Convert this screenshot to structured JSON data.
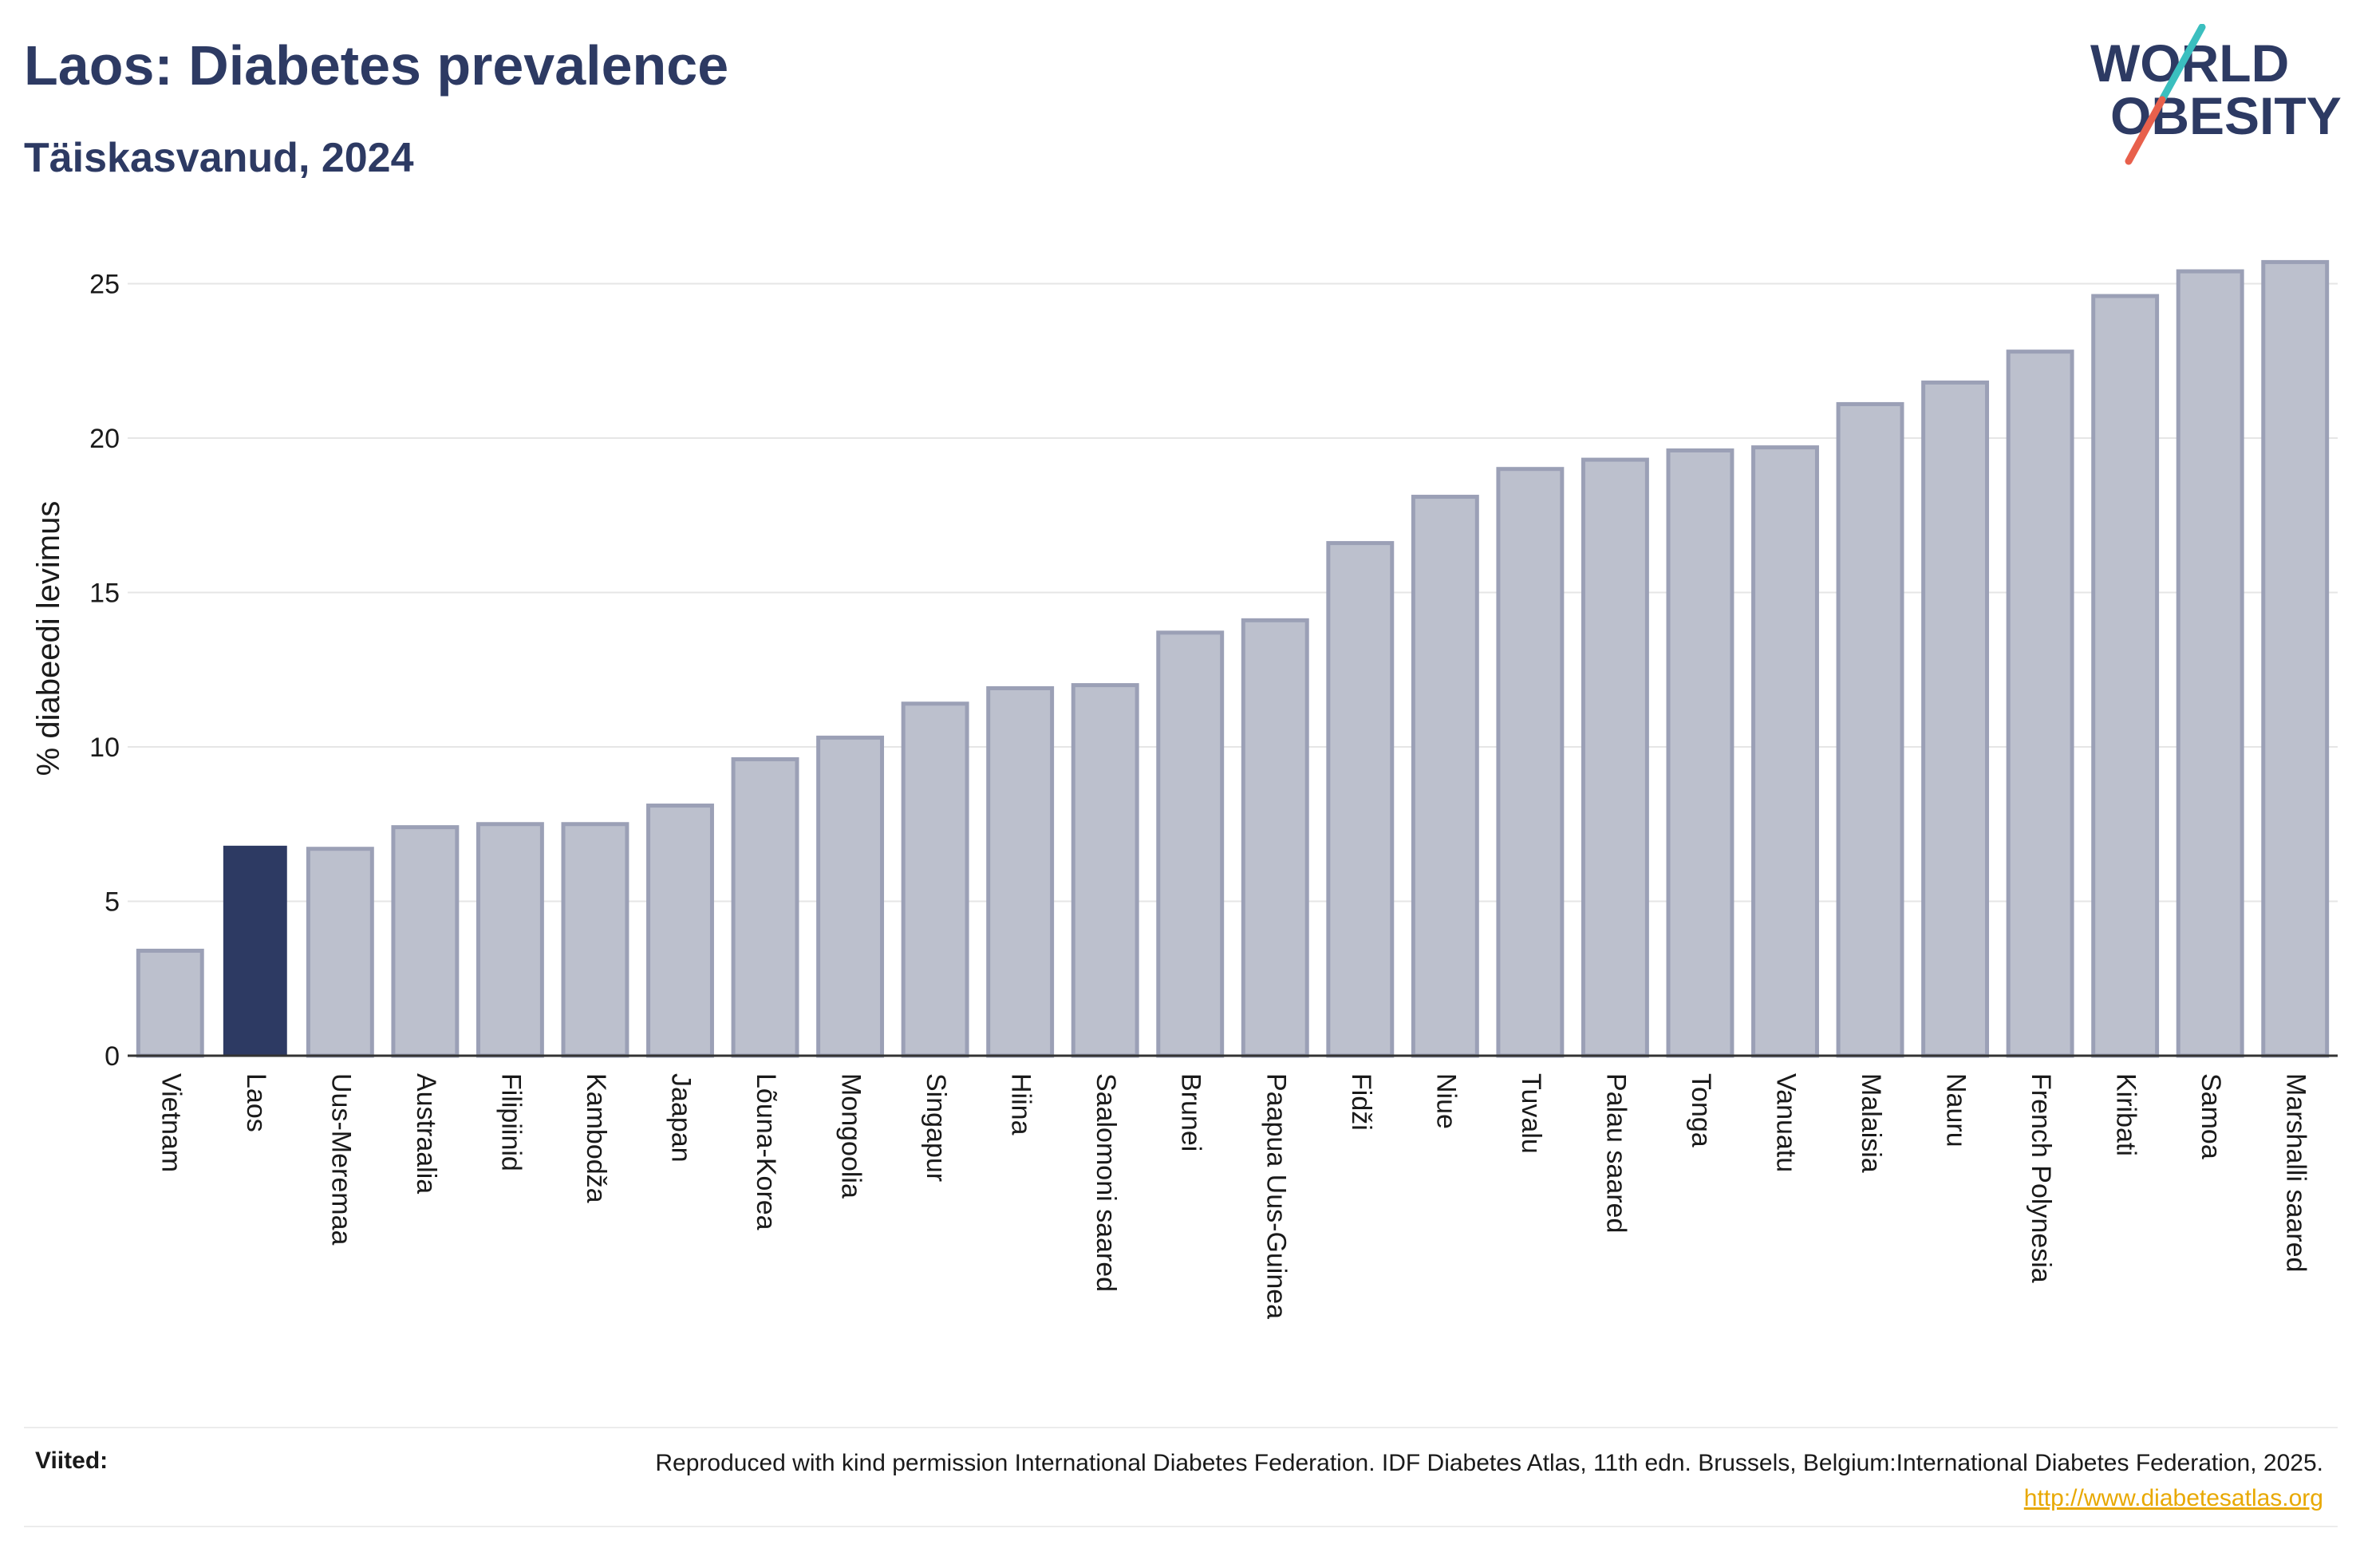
{
  "header": {
    "title": "Laos: Diabetes prevalence",
    "subtitle": "Täiskasvanud, 2024"
  },
  "logo": {
    "line1": "WORLD",
    "line2": "OBESITY",
    "colors": {
      "text": "#2d3a63",
      "slash_top": "#3bbfbf",
      "slash_bottom": "#e8604c"
    }
  },
  "colors": {
    "highlight": "#2d3a63",
    "bar": "#bcc0cd",
    "bar_border": "#9ba0b6",
    "grid": "#e6e6e6",
    "axis": "#333333"
  },
  "chart_data": {
    "type": "bar",
    "ylabel": "% diabeedi levimus",
    "xlabel": "",
    "ylim": [
      0,
      26.5
    ],
    "yticks": [
      0,
      5,
      10,
      15,
      20,
      25
    ],
    "grid": true,
    "highlight": "Laos",
    "categories": [
      "Vietnam",
      "Laos",
      "Uus-Meremaa",
      "Austraalia",
      "Filipiinid",
      "Kambodža",
      "Jaapan",
      "Lõuna-Korea",
      "Mongoolia",
      "Singapur",
      "Hiina",
      "Saalomoni saared",
      "Brunei",
      "Paapua Uus-Guinea",
      "Fidži",
      "Niue",
      "Tuvalu",
      "Palau saared",
      "Tonga",
      "Vanuatu",
      "Malaisia",
      "Nauru",
      "French Polynesia",
      "Kiribati",
      "Samoa",
      "Marshalli saared"
    ],
    "values": [
      3.4,
      6.8,
      6.7,
      7.4,
      7.5,
      7.5,
      8.1,
      9.6,
      10.3,
      11.4,
      11.9,
      12.0,
      13.7,
      14.1,
      16.6,
      18.1,
      19.0,
      19.3,
      19.6,
      19.7,
      21.1,
      21.8,
      22.8,
      24.6,
      25.4,
      25.7
    ]
  },
  "footer": {
    "sources_label": "Viited:",
    "sources_text": "Reproduced with kind permission International Diabetes Federation. IDF Diabetes Atlas, 11th edn. Brussels, Belgium:International Diabetes Federation, 2025.",
    "sources_link": "http://www.diabetesatlas.org"
  }
}
